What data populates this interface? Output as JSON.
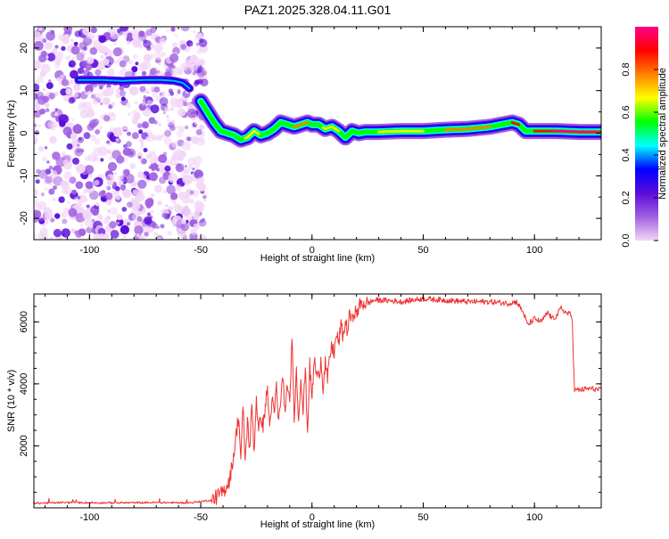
{
  "title": "PAZ1.2025.328.04.11.G01",
  "chart_data": [
    {
      "type": "heatmap",
      "title": "PAZ1.2025.328.04.11.G01",
      "xlabel": "Height of straight line (km)",
      "ylabel": "Frequency (Hz)",
      "xlim": [
        -125,
        130
      ],
      "ylim": [
        -25,
        25
      ],
      "x_ticks": [
        -100,
        -50,
        0,
        50,
        100
      ],
      "x_tick_labels": [
        "-100",
        "-50",
        "0",
        "50",
        "100"
      ],
      "y_ticks": [
        -20,
        -10,
        0,
        10,
        20
      ],
      "y_tick_labels": [
        "-20",
        "-10",
        "0",
        "10",
        "20"
      ],
      "ridge": {
        "x": [
          -50,
          -47,
          -44,
          -41,
          -38,
          -35,
          -32,
          -29,
          -26,
          -23,
          -20,
          -17,
          -14,
          -11,
          -8,
          -5,
          -2,
          0,
          3,
          6,
          9,
          12,
          15,
          18,
          21,
          24,
          30,
          40,
          50,
          60,
          70,
          80,
          85,
          90,
          93,
          96,
          100,
          110,
          120,
          130
        ],
        "freq": [
          7.5,
          5,
          2.5,
          0.5,
          0,
          -0.5,
          -1.5,
          -1,
          0.5,
          -0.5,
          0,
          1,
          2.5,
          2,
          1.5,
          2,
          2.5,
          2,
          2,
          1,
          1.5,
          0.5,
          -1,
          0.5,
          0,
          0.3,
          0.3,
          0.5,
          0.5,
          0.8,
          1,
          1.5,
          2,
          2.5,
          2,
          0.5,
          0.5,
          0.5,
          0.3,
          0.3
        ]
      },
      "early_line": {
        "x": [
          -105,
          -95,
          -85,
          -75,
          -68,
          -62,
          -58,
          -55
        ],
        "freq": [
          12.5,
          12.5,
          12.3,
          12.5,
          12.5,
          12.3,
          11.8,
          10.5
        ]
      },
      "noise_region": [
        -125,
        -48
      ],
      "colorbar": {
        "label": "Normalized spectral amplitude",
        "range": [
          0,
          1
        ],
        "ticks": [
          0.0,
          0.2,
          0.4,
          0.6,
          0.8
        ],
        "tick_labels": [
          "0.0",
          "0.2",
          "0.4",
          "0.6",
          "0.8"
        ],
        "colors": [
          "#f2d6f7",
          "#a060e0",
          "#5b0bdc",
          "#0000ff",
          "#00ffff",
          "#00ff00",
          "#ffff00",
          "#ff8000",
          "#ff0000",
          "#ff0088"
        ]
      }
    },
    {
      "type": "line",
      "xlabel": "Height of straight line (km)",
      "ylabel": "SNR (10 * v/v)",
      "xlim": [
        -125,
        130
      ],
      "ylim": [
        0,
        6900
      ],
      "x_ticks": [
        -100,
        -50,
        0,
        50,
        100
      ],
      "x_tick_labels": [
        "-100",
        "-50",
        "0",
        "50",
        "100"
      ],
      "y_ticks": [
        2000,
        4000,
        6000
      ],
      "y_tick_labels": [
        "2000",
        "4000",
        "6000"
      ],
      "color": "#ee3333",
      "series": [
        {
          "name": "SNR",
          "x": [
            -125,
            -110,
            -90,
            -70,
            -55,
            -45,
            -40,
            -37,
            -35,
            -34,
            -33,
            -32,
            -31,
            -30,
            -29,
            -28,
            -27,
            -26,
            -25,
            -24,
            -23,
            -22,
            -21,
            -20,
            -19,
            -18,
            -17,
            -16,
            -15,
            -14,
            -13,
            -12,
            -11,
            -10,
            -9,
            -8,
            -7,
            -6,
            -5,
            -4,
            -3,
            -2,
            -1,
            0,
            1,
            2,
            3,
            4,
            5,
            6,
            7,
            8,
            9,
            10,
            11,
            12,
            13,
            14,
            15,
            16,
            17,
            18,
            19,
            20,
            21,
            22,
            23,
            25,
            28,
            32,
            40,
            50,
            60,
            70,
            80,
            88,
            92,
            95,
            97,
            100,
            103,
            106,
            108,
            110,
            112,
            114,
            116,
            117,
            117.5,
            118,
            120,
            125,
            130
          ],
          "y": [
            150,
            170,
            160,
            170,
            160,
            250,
            500,
            900,
            1800,
            2400,
            3000,
            1600,
            3200,
            1500,
            2800,
            1900,
            3300,
            1800,
            3600,
            2400,
            3000,
            2600,
            3300,
            3800,
            2600,
            3500,
            3000,
            3900,
            2700,
            3600,
            4200,
            2900,
            4100,
            3200,
            5600,
            3000,
            4400,
            2800,
            4300,
            3100,
            4500,
            2400,
            4600,
            3500,
            4800,
            4300,
            4200,
            4800,
            3900,
            4700,
            4100,
            4900,
            5200,
            5000,
            5600,
            5300,
            5900,
            5500,
            6000,
            5700,
            6300,
            6000,
            6400,
            6200,
            6500,
            6550,
            6600,
            6600,
            6700,
            6700,
            6650,
            6750,
            6700,
            6650,
            6650,
            6600,
            6650,
            6300,
            5900,
            6100,
            6000,
            6300,
            6100,
            6200,
            6450,
            6300,
            6250,
            6100,
            4800,
            3800,
            3800,
            3850,
            3800
          ]
        }
      ]
    }
  ]
}
